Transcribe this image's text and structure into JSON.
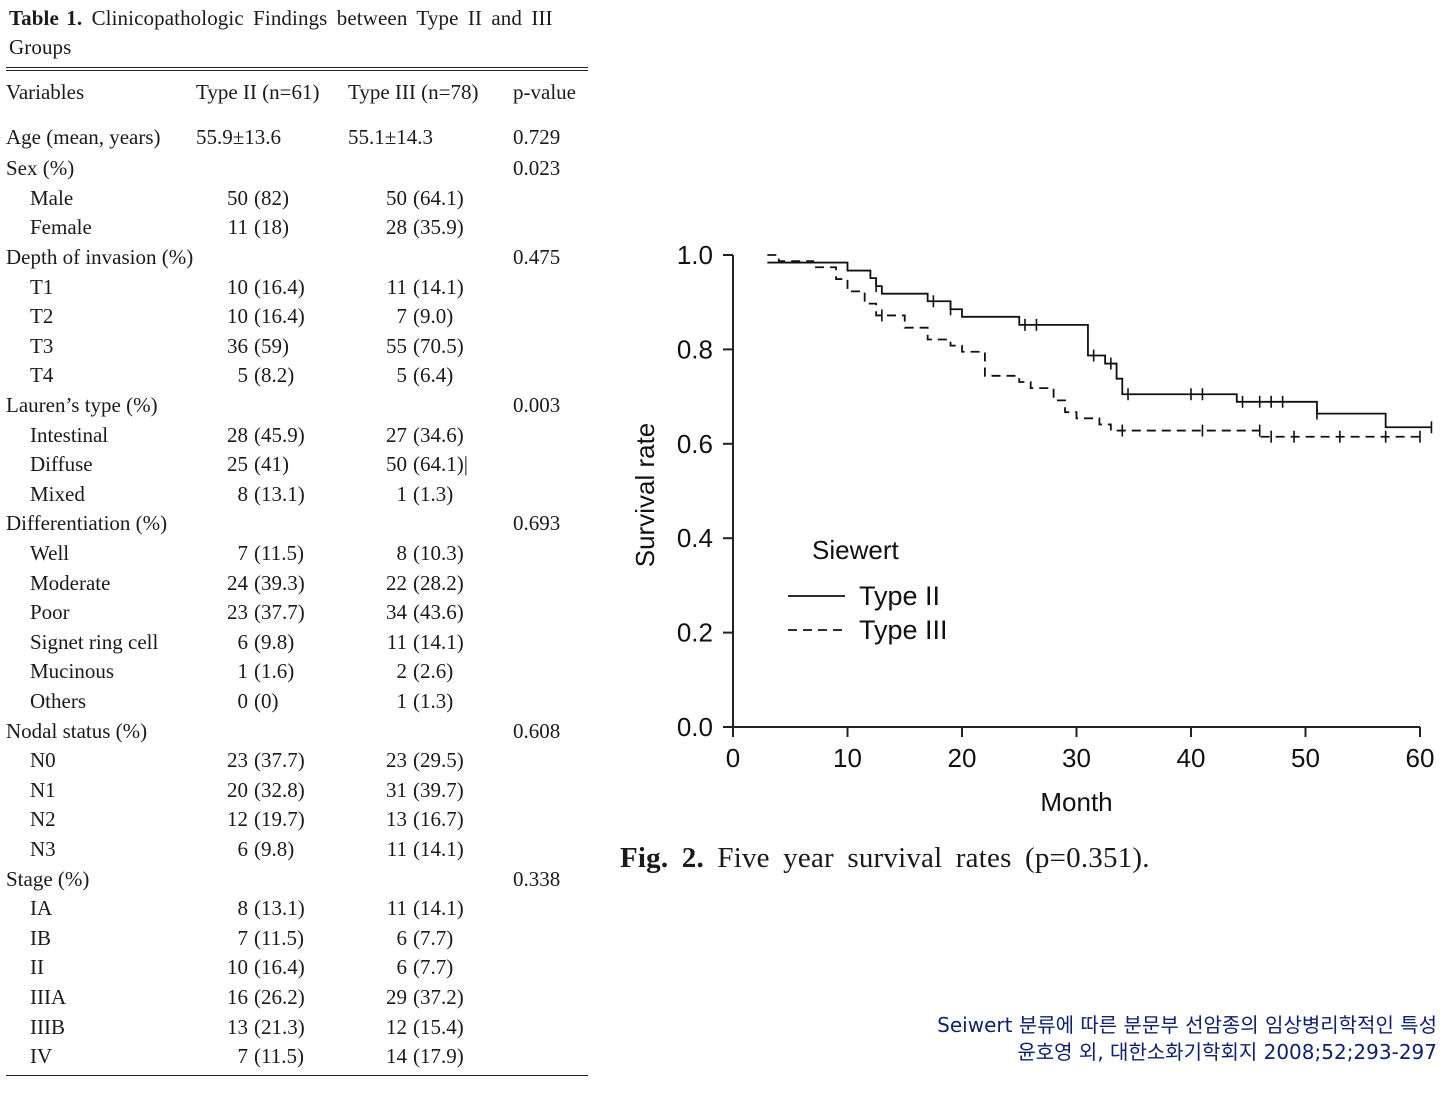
{
  "table": {
    "caption_label": "Table 1.",
    "caption_text": "Clinicopathologic Findings between Type II and III Groups",
    "headers": [
      "Variables",
      "Type II (n=61)",
      "Type III (n=78)",
      "p-value"
    ],
    "rows": [
      {
        "label": "Age (mean, years)",
        "kind": "mean",
        "t2": "55.9±13.6",
        "t3": "55.1±14.3",
        "p": "0.729"
      },
      {
        "label": "Sex (%)",
        "kind": "group",
        "p": "0.023"
      },
      {
        "label": "Male",
        "kind": "sub",
        "t2n": "50",
        "t2p": "(82)",
        "t3n": "50",
        "t3p": "(64.1)"
      },
      {
        "label": "Female",
        "kind": "sub",
        "t2n": "11",
        "t2p": "(18)",
        "t3n": "28",
        "t3p": "(35.9)"
      },
      {
        "label": "Depth of invasion (%)",
        "kind": "group",
        "p": "0.475"
      },
      {
        "label": "T1",
        "kind": "sub",
        "t2n": "10",
        "t2p": "(16.4)",
        "t3n": "11",
        "t3p": "(14.1)"
      },
      {
        "label": "T2",
        "kind": "sub",
        "t2n": "10",
        "t2p": "(16.4)",
        "t3n": "7",
        "t3p": "(9.0)"
      },
      {
        "label": "T3",
        "kind": "sub",
        "t2n": "36",
        "t2p": "(59)",
        "t3n": "55",
        "t3p": "(70.5)"
      },
      {
        "label": "T4",
        "kind": "sub",
        "t2n": "5",
        "t2p": "(8.2)",
        "t3n": "5",
        "t3p": "(6.4)"
      },
      {
        "label": "Lauren’s type (%)",
        "kind": "group",
        "p": "0.003"
      },
      {
        "label": "Intestinal",
        "kind": "sub",
        "t2n": "28",
        "t2p": "(45.9)",
        "t3n": "27",
        "t3p": "(34.6)"
      },
      {
        "label": "Diffuse",
        "kind": "sub",
        "t2n": "25",
        "t2p": "(41)",
        "t3n": "50",
        "t3p": "(64.1)|"
      },
      {
        "label": "Mixed",
        "kind": "sub",
        "t2n": "8",
        "t2p": "(13.1)",
        "t3n": "1",
        "t3p": "(1.3)"
      },
      {
        "label": "Differentiation (%)",
        "kind": "group",
        "p": "0.693"
      },
      {
        "label": "Well",
        "kind": "sub",
        "t2n": "7",
        "t2p": "(11.5)",
        "t3n": "8",
        "t3p": "(10.3)"
      },
      {
        "label": "Moderate",
        "kind": "sub",
        "t2n": "24",
        "t2p": "(39.3)",
        "t3n": "22",
        "t3p": "(28.2)"
      },
      {
        "label": "Poor",
        "kind": "sub",
        "t2n": "23",
        "t2p": "(37.7)",
        "t3n": "34",
        "t3p": "(43.6)"
      },
      {
        "label": "Signet ring cell",
        "kind": "sub",
        "t2n": "6",
        "t2p": "(9.8)",
        "t3n": "11",
        "t3p": "(14.1)"
      },
      {
        "label": "Mucinous",
        "kind": "sub",
        "t2n": "1",
        "t2p": "(1.6)",
        "t3n": "2",
        "t3p": "(2.6)"
      },
      {
        "label": "Others",
        "kind": "sub",
        "t2n": "0",
        "t2p": "(0)",
        "t3n": "1",
        "t3p": "(1.3)"
      },
      {
        "label": "Nodal status (%)",
        "kind": "group",
        "p": "0.608"
      },
      {
        "label": "N0",
        "kind": "sub",
        "t2n": "23",
        "t2p": "(37.7)",
        "t3n": "23",
        "t3p": "(29.5)"
      },
      {
        "label": "N1",
        "kind": "sub",
        "t2n": "20",
        "t2p": "(32.8)",
        "t3n": "31",
        "t3p": "(39.7)"
      },
      {
        "label": "N2",
        "kind": "sub",
        "t2n": "12",
        "t2p": "(19.7)",
        "t3n": "13",
        "t3p": "(16.7)"
      },
      {
        "label": "N3",
        "kind": "sub",
        "t2n": "6",
        "t2p": "(9.8)",
        "t3n": "11",
        "t3p": "(14.1)"
      },
      {
        "label": "Stage (%)",
        "kind": "group",
        "p": "0.338"
      },
      {
        "label": "IA",
        "kind": "sub",
        "t2n": "8",
        "t2p": "(13.1)",
        "t3n": "11",
        "t3p": "(14.1)"
      },
      {
        "label": "IB",
        "kind": "sub",
        "t2n": "7",
        "t2p": "(11.5)",
        "t3n": "6",
        "t3p": "(7.7)"
      },
      {
        "label": "II",
        "kind": "sub",
        "t2n": "10",
        "t2p": "(16.4)",
        "t3n": "6",
        "t3p": "(7.7)"
      },
      {
        "label": "IIIA",
        "kind": "sub",
        "t2n": "16",
        "t2p": "(26.2)",
        "t3n": "29",
        "t3p": "(37.2)"
      },
      {
        "label": "IIIB",
        "kind": "sub",
        "t2n": "13",
        "t2p": "(21.3)",
        "t3n": "12",
        "t3p": "(15.4)"
      },
      {
        "label": "IV",
        "kind": "sub",
        "t2n": "7",
        "t2p": "(11.5)",
        "t3n": "14",
        "t3p": "(17.9)"
      }
    ]
  },
  "chart_data": {
    "type": "line",
    "subtype": "kaplan-meier step",
    "xlabel": "Month",
    "ylabel": "Survival rate",
    "xlim": [
      0,
      60
    ],
    "ylim": [
      0,
      1.0
    ],
    "xticks": [
      "0",
      "10",
      "20",
      "30",
      "40",
      "50",
      "60"
    ],
    "yticks": [
      "0.0",
      "0.2",
      "0.4",
      "0.6",
      "0.8",
      "1.0"
    ],
    "grid": false,
    "legend": {
      "title": "Siewert",
      "placement": "center-left"
    },
    "series": [
      {
        "name": "Type II",
        "style": "solid",
        "color": "#111111",
        "steps": [
          [
            3,
            0.984
          ],
          [
            10,
            0.967
          ],
          [
            12,
            0.951
          ],
          [
            12.5,
            0.934
          ],
          [
            13,
            0.918
          ],
          [
            17,
            0.902
          ],
          [
            19,
            0.885
          ],
          [
            20,
            0.869
          ],
          [
            25,
            0.852
          ],
          [
            31,
            0.787
          ],
          [
            32.5,
            0.77
          ],
          [
            33.5,
            0.738
          ],
          [
            34,
            0.705
          ],
          [
            44,
            0.689
          ],
          [
            51,
            0.664
          ],
          [
            57,
            0.635
          ],
          [
            61,
            0.635
          ]
        ],
        "censored": [
          [
            12.5,
            0.934
          ],
          [
            17.5,
            0.902
          ],
          [
            19,
            0.885
          ],
          [
            25.5,
            0.852
          ],
          [
            26.5,
            0.852
          ],
          [
            31.5,
            0.787
          ],
          [
            33,
            0.77
          ],
          [
            34.5,
            0.705
          ],
          [
            40,
            0.705
          ],
          [
            41,
            0.705
          ],
          [
            44.5,
            0.689
          ],
          [
            46,
            0.689
          ],
          [
            47,
            0.689
          ],
          [
            48,
            0.689
          ],
          [
            51,
            0.664
          ],
          [
            61,
            0.635
          ]
        ]
      },
      {
        "name": "Type III",
        "style": "dashed",
        "color": "#111111",
        "steps": [
          [
            3,
            1.0
          ],
          [
            4,
            0.987
          ],
          [
            7,
            0.974
          ],
          [
            9,
            0.949
          ],
          [
            10,
            0.923
          ],
          [
            11.5,
            0.897
          ],
          [
            12.5,
            0.872
          ],
          [
            15,
            0.846
          ],
          [
            17,
            0.821
          ],
          [
            19,
            0.808
          ],
          [
            20,
            0.795
          ],
          [
            22,
            0.744
          ],
          [
            25,
            0.731
          ],
          [
            26,
            0.718
          ],
          [
            28,
            0.692
          ],
          [
            29,
            0.667
          ],
          [
            30,
            0.654
          ],
          [
            32,
            0.641
          ],
          [
            33,
            0.628
          ],
          [
            46,
            0.615
          ],
          [
            60,
            0.615
          ]
        ],
        "censored": [
          [
            13,
            0.872
          ],
          [
            34,
            0.628
          ],
          [
            41,
            0.628
          ],
          [
            46,
            0.628
          ],
          [
            47,
            0.615
          ],
          [
            49,
            0.615
          ],
          [
            53,
            0.615
          ],
          [
            57,
            0.615
          ],
          [
            60,
            0.615
          ]
        ]
      }
    ]
  },
  "figure": {
    "caption_label": "Fig. 2.",
    "caption_text": "Five year survival rates (p=0.351).",
    "axis_color": "#222222"
  },
  "citation": {
    "line1": "Seiwert 분류에 따른 분문부 선암종의 임상병리학적인 특성",
    "line2": "윤호영 외, 대한소화기학회지 2008;52;293-297",
    "color": "#102070"
  }
}
